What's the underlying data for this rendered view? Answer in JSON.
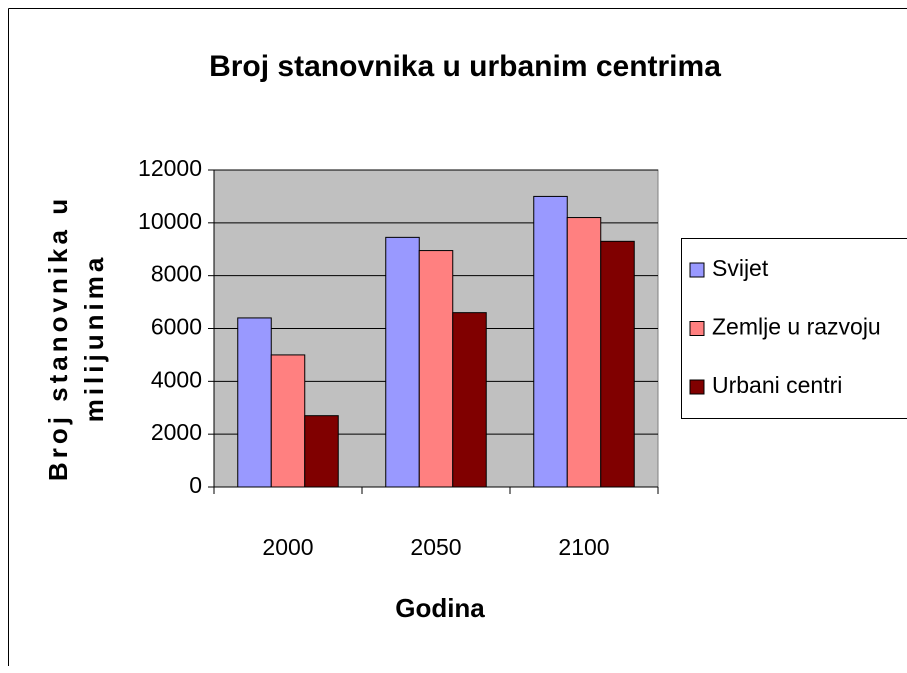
{
  "chart_data": {
    "type": "bar",
    "title": "Broj stanovnika u urbanim centrima",
    "x_label": "Godina",
    "y_label": [
      "Broj stanovnika u",
      "milijunima"
    ],
    "categories": [
      "2000",
      "2050",
      "2100"
    ],
    "series": [
      {
        "name": "Svijet",
        "color": "#9999ff",
        "values": [
          6400,
          9450,
          11000
        ]
      },
      {
        "name": "Zemlje u razvoju",
        "color": "#ff8080",
        "values": [
          5000,
          8950,
          10200
        ]
      },
      {
        "name": "Urbani centri",
        "color": "#800000",
        "values": [
          2700,
          6600,
          9300
        ]
      }
    ],
    "ylim": [
      0,
      12000
    ],
    "yticks": [
      0,
      2000,
      4000,
      6000,
      8000,
      10000,
      12000
    ],
    "grid": true,
    "legend": "right"
  }
}
